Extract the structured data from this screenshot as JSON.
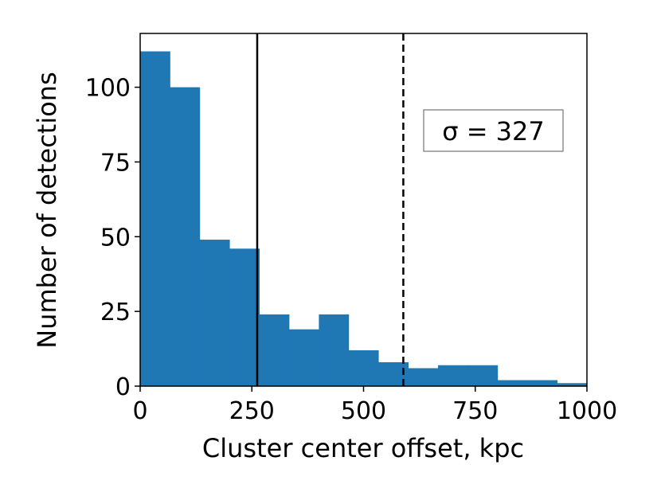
{
  "chart_data": {
    "type": "bar",
    "title": "",
    "xlabel": "Cluster center offset, kpc",
    "ylabel": "Number of detections",
    "xlim": [
      0,
      1000
    ],
    "ylim": [
      0,
      118
    ],
    "xticks": [
      0,
      250,
      500,
      750,
      1000
    ],
    "yticks": [
      0,
      25,
      50,
      75,
      100
    ],
    "grid": false,
    "bar_color": "#1f77b4",
    "bins": [
      {
        "start": 0,
        "end": 66.7,
        "count": 112
      },
      {
        "start": 66.7,
        "end": 133.3,
        "count": 100
      },
      {
        "start": 133.3,
        "end": 200,
        "count": 49
      },
      {
        "start": 200,
        "end": 266.7,
        "count": 46
      },
      {
        "start": 266.7,
        "end": 333.3,
        "count": 24
      },
      {
        "start": 333.3,
        "end": 400,
        "count": 19
      },
      {
        "start": 400,
        "end": 466.7,
        "count": 24
      },
      {
        "start": 466.7,
        "end": 533.3,
        "count": 12
      },
      {
        "start": 533.3,
        "end": 600,
        "count": 8
      },
      {
        "start": 600,
        "end": 666.7,
        "count": 6
      },
      {
        "start": 666.7,
        "end": 733.3,
        "count": 7
      },
      {
        "start": 733.3,
        "end": 800,
        "count": 7
      },
      {
        "start": 800,
        "end": 866.7,
        "count": 2
      },
      {
        "start": 866.7,
        "end": 933.3,
        "count": 2
      },
      {
        "start": 933.3,
        "end": 1000,
        "count": 1
      }
    ],
    "vlines": [
      {
        "x": 262,
        "style": "solid",
        "color": "#000000"
      },
      {
        "x": 589,
        "style": "dashed",
        "color": "#000000"
      }
    ],
    "annotation": {
      "text": "σ = 327",
      "position": "upper-right"
    }
  }
}
